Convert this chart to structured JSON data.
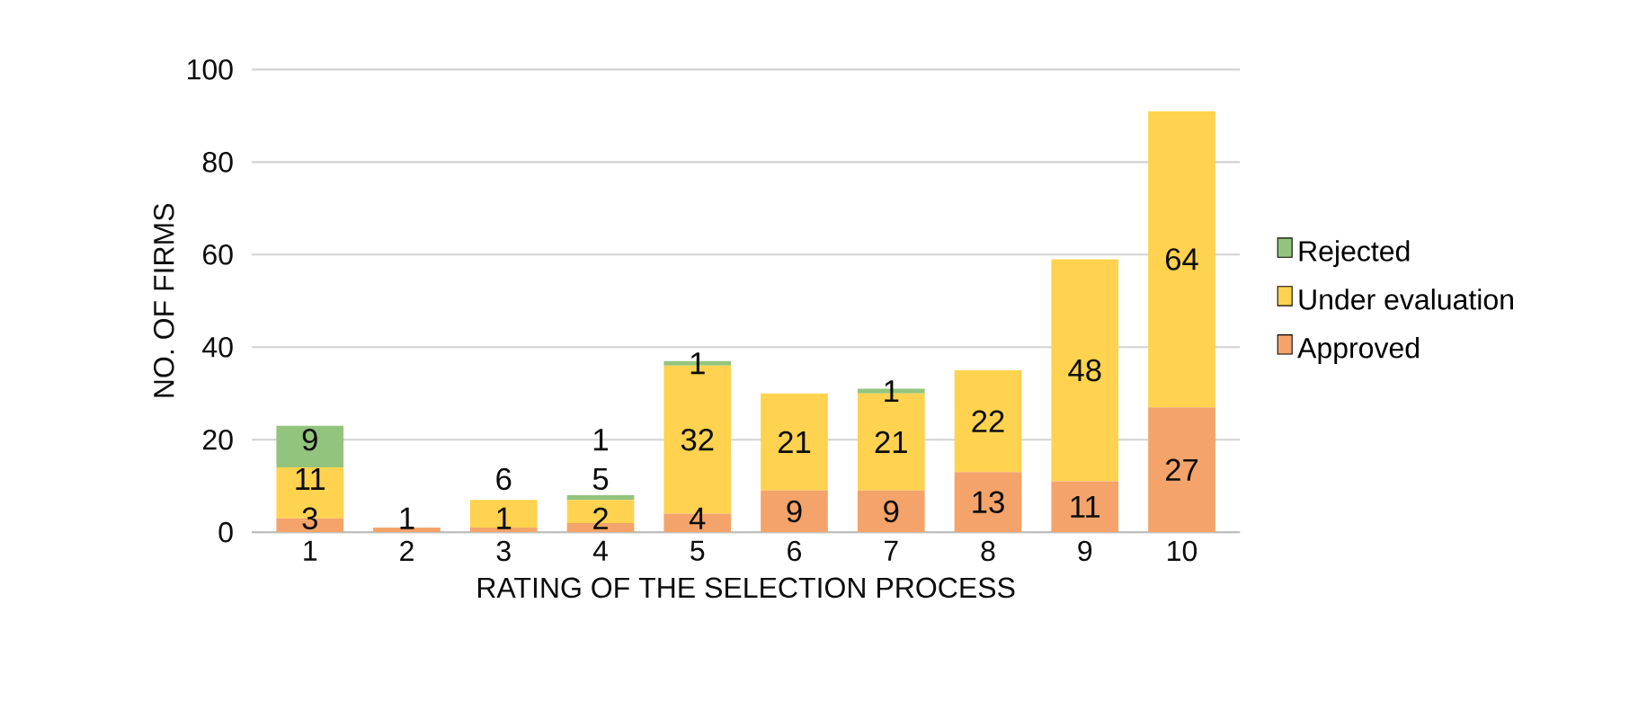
{
  "chart_data": {
    "type": "bar",
    "stacked": true,
    "xlabel": "RATING OF THE SELECTION PROCESS",
    "ylabel": "NO. OF FIRMS",
    "categories": [
      "1",
      "2",
      "3",
      "4",
      "5",
      "6",
      "7",
      "8",
      "9",
      "10"
    ],
    "series": [
      {
        "name": "Approved",
        "color": "#f4a46a",
        "values": [
          3,
          1,
          1,
          2,
          4,
          9,
          9,
          13,
          11,
          27
        ]
      },
      {
        "name": "Under evaluation",
        "color": "#ffd34f",
        "values": [
          11,
          null,
          6,
          5,
          32,
          21,
          21,
          22,
          48,
          64
        ]
      },
      {
        "name": "Rejected",
        "color": "#93c47d",
        "values": [
          9,
          null,
          null,
          1,
          1,
          null,
          1,
          null,
          null,
          null
        ]
      }
    ],
    "ylim": [
      0,
      100
    ],
    "yticks": [
      0,
      20,
      40,
      60,
      80,
      100
    ],
    "grid": "y",
    "legend": "right",
    "data_labels": true
  }
}
